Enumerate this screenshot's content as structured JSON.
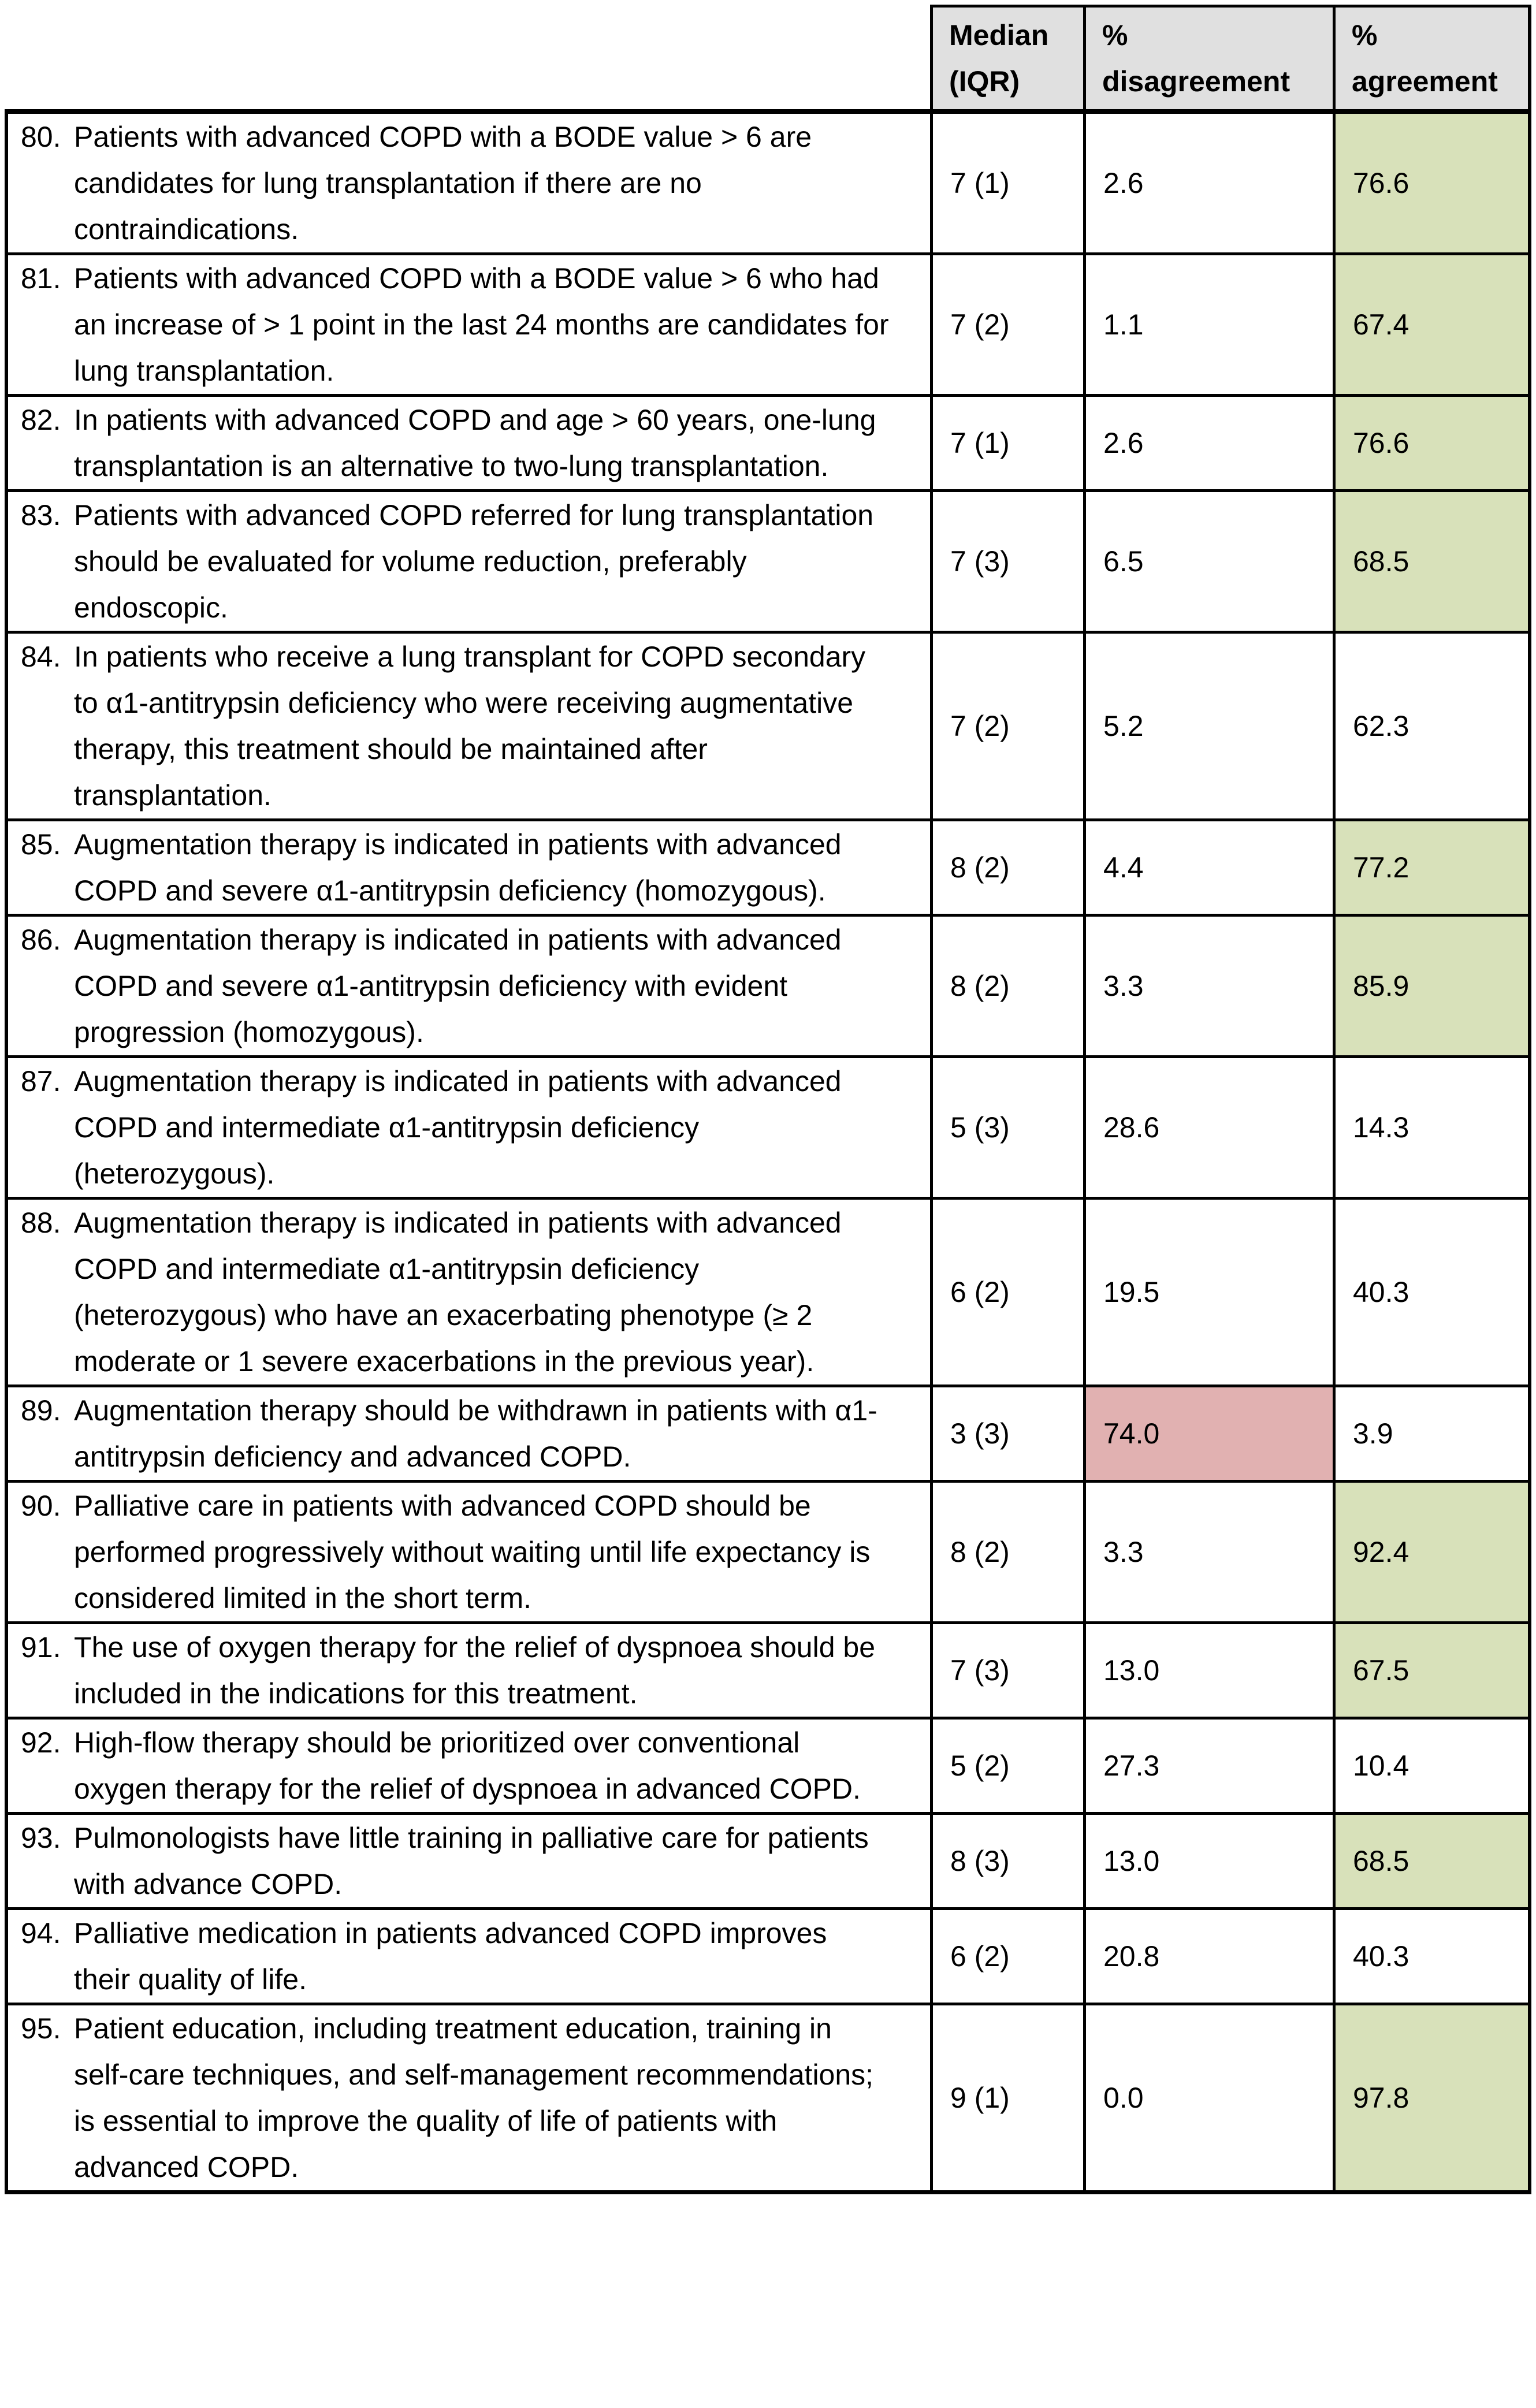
{
  "colors": {
    "header_grey": "#e0e0e0",
    "agreement_green": "#d8e1ba",
    "disagreement_red": "#e1b1b1",
    "grid_black": "#000000"
  },
  "table": {
    "header": {
      "statement_label": "",
      "median_label": "Median\n(IQR)",
      "disagreement_label": "%\ndisagreement",
      "agreement_label": "%\nagreement"
    },
    "rows": [
      {
        "num": "80.",
        "statement": "Patients with advanced COPD with a BODE value > 6 are candidates for lung transplantation if there are no contraindications.",
        "median": "7 (1)",
        "disagreement": "2.6",
        "agreement": "76.6",
        "disagreement_highlight": false,
        "agreement_highlight": true
      },
      {
        "num": "81.",
        "statement": "Patients with advanced COPD with a BODE value > 6 who had an increase of > 1 point in the last 24 months are candidates for lung transplantation.",
        "median": "7 (2)",
        "disagreement": "1.1",
        "agreement": "67.4",
        "disagreement_highlight": false,
        "agreement_highlight": true
      },
      {
        "num": "82.",
        "statement": "In patients with advanced COPD and age > 60 years, one-lung transplantation is an alternative to two-lung transplantation.",
        "median": "7 (1)",
        "disagreement": "2.6",
        "agreement": "76.6",
        "disagreement_highlight": false,
        "agreement_highlight": true
      },
      {
        "num": "83.",
        "statement": "Patients with advanced COPD referred for lung transplantation should be evaluated for volume reduction, preferably endoscopic.",
        "median": "7 (3)",
        "disagreement": "6.5",
        "agreement": "68.5",
        "disagreement_highlight": false,
        "agreement_highlight": true
      },
      {
        "num": "84.",
        "statement": "In patients who receive a lung transplant for COPD secondary to α1-antitrypsin deficiency who were receiving augmentative therapy, this treatment should be maintained after transplantation.",
        "median": "7 (2)",
        "disagreement": "5.2",
        "agreement": "62.3",
        "disagreement_highlight": false,
        "agreement_highlight": false
      },
      {
        "num": "85.",
        "statement": "Augmentation therapy is indicated in patients with advanced COPD and severe α1-antitrypsin deficiency (homozygous).",
        "median": "8 (2)",
        "disagreement": "4.4",
        "agreement": "77.2",
        "disagreement_highlight": false,
        "agreement_highlight": true
      },
      {
        "num": "86.",
        "statement": "Augmentation therapy is indicated in patients with advanced COPD and severe α1-antitrypsin deficiency with evident progression (homozygous).",
        "median": "8 (2)",
        "disagreement": "3.3",
        "agreement": "85.9",
        "disagreement_highlight": false,
        "agreement_highlight": true
      },
      {
        "num": "87.",
        "statement": "Augmentation therapy is indicated in patients with advanced COPD and intermediate α1-antitrypsin deficiency (heterozygous).",
        "median": "5 (3)",
        "disagreement": "28.6",
        "agreement": "14.3",
        "disagreement_highlight": false,
        "agreement_highlight": false
      },
      {
        "num": "88.",
        "statement": "Augmentation therapy is indicated in patients with advanced COPD and intermediate α1-antitrypsin deficiency (heterozygous) who have an exacerbating phenotype (≥ 2 moderate or 1 severe exacerbations in the previous year).",
        "median": "6 (2)",
        "disagreement": "19.5",
        "agreement": "40.3",
        "disagreement_highlight": false,
        "agreement_highlight": false
      },
      {
        "num": "89.",
        "statement": "Augmentation therapy should be withdrawn in patients with α1-antitrypsin deficiency and advanced COPD.",
        "median": "3 (3)",
        "disagreement": "74.0",
        "agreement": "3.9",
        "disagreement_highlight": true,
        "agreement_highlight": false
      },
      {
        "num": "90.",
        "statement": "Palliative care in patients with advanced COPD should be performed progressively without waiting until life expectancy is considered limited in the short term.",
        "median": "8 (2)",
        "disagreement": "3.3",
        "agreement": "92.4",
        "disagreement_highlight": false,
        "agreement_highlight": true
      },
      {
        "num": "91.",
        "statement": "The use of oxygen therapy for the relief of dyspnoea should be included in the indications for this treatment.",
        "median": "7 (3)",
        "disagreement": "13.0",
        "agreement": "67.5",
        "disagreement_highlight": false,
        "agreement_highlight": true
      },
      {
        "num": "92.",
        "statement": "High-flow therapy should be prioritized over conventional oxygen therapy for the relief of dyspnoea in advanced COPD.",
        "median": "5 (2)",
        "disagreement": "27.3",
        "agreement": "10.4",
        "disagreement_highlight": false,
        "agreement_highlight": false
      },
      {
        "num": "93.",
        "statement": "Pulmonologists have little training in palliative care for patients with advance COPD.",
        "median": "8 (3)",
        "disagreement": "13.0",
        "agreement": "68.5",
        "disagreement_highlight": false,
        "agreement_highlight": true
      },
      {
        "num": "94.",
        "statement": "Palliative medication in patients advanced COPD improves their quality of life.",
        "median": "6 (2)",
        "disagreement": "20.8",
        "agreement": "40.3",
        "disagreement_highlight": false,
        "agreement_highlight": false
      },
      {
        "num": "95.",
        "statement": "Patient education, including treatment education, training in self-care techniques, and self-management recommendations; is essential to improve the quality of life of patients with advanced COPD.",
        "median": "9 (1)",
        "disagreement": "0.0",
        "agreement": "97.8",
        "disagreement_highlight": false,
        "agreement_highlight": true
      }
    ]
  }
}
